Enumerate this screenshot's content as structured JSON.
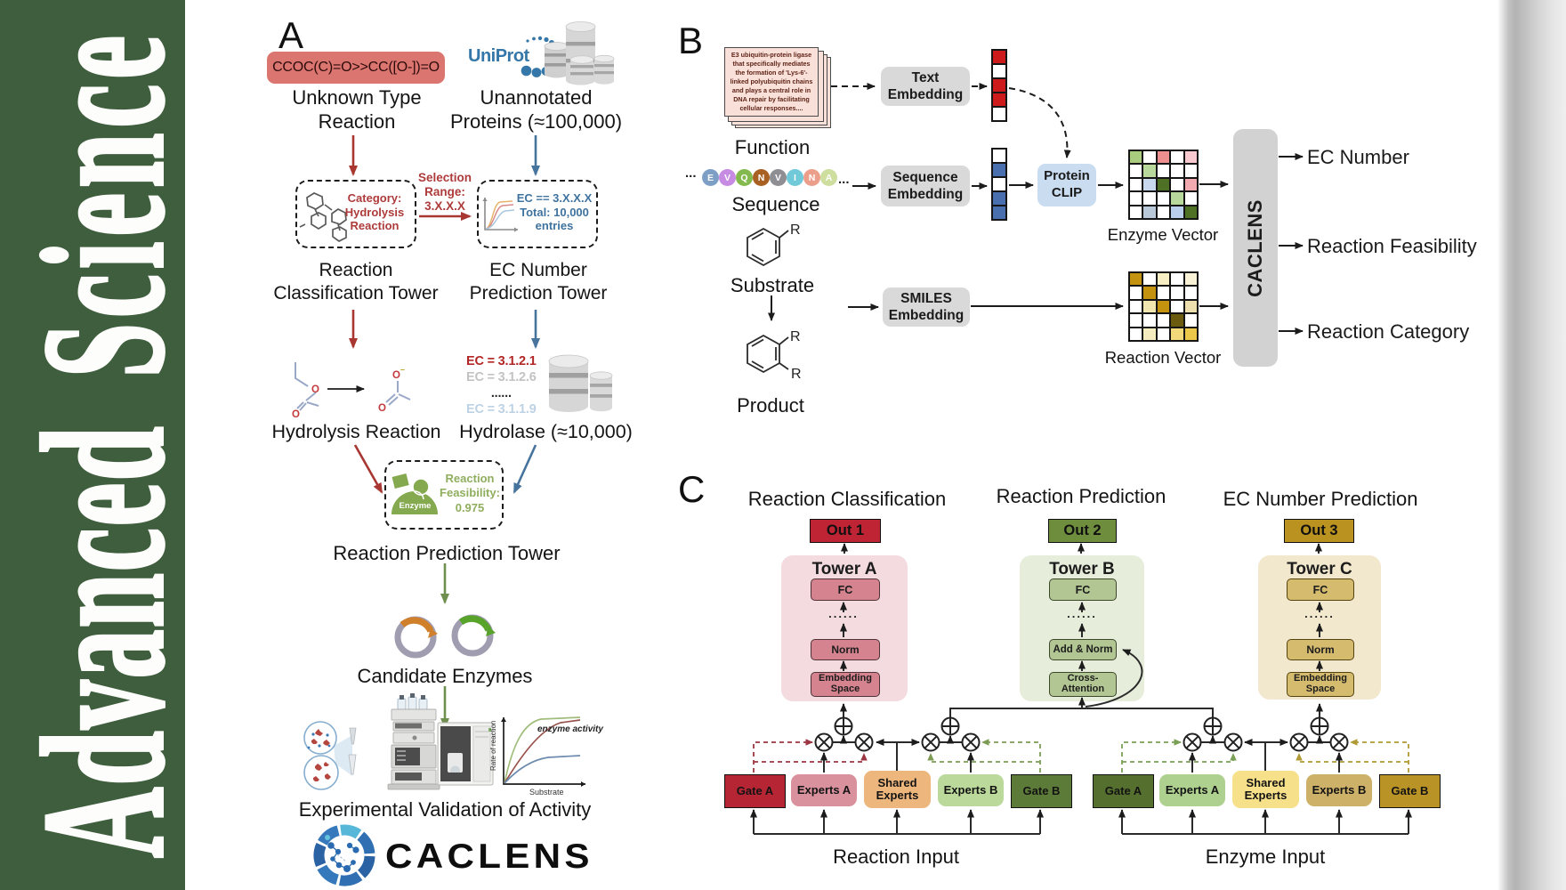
{
  "sidebar": {
    "word_bottom": "Advanced",
    "word_top": "Science",
    "bg_color": "#3f5e3d",
    "text_color": "#ffffff"
  },
  "panel_a": {
    "letter": "A",
    "smiles_reaction": "CCOC(C)=O>>CC([O-])=O",
    "smiles_box_color": "#da7570",
    "unknown_type": "Unknown Type\nReaction",
    "uniprot_logo": "UniProt",
    "unannotated": "Unannotated\nProteins (≈100,000)",
    "category_box": "Category:\nHydrolysis\nReaction",
    "selection_range": "Selection\nRange:\n3.X.X.X",
    "ec_box": "EC == 3.X.X.X\nTotal: 10,000\nentries",
    "classification_tower": "Reaction\nClassification Tower",
    "ec_prediction_tower": "EC Number\nPrediction Tower",
    "hydrolysis_reaction": "Hydrolysis Reaction",
    "hydrolase": "Hydrolase (≈10,000)",
    "ec_list": [
      {
        "text": "EC = 3.1.2.1",
        "color": "#b22626",
        "weight": "700"
      },
      {
        "text": "EC = 3.1.2.6",
        "color": "#c3c3c3",
        "weight": "700"
      },
      {
        "text": "......",
        "color": "#2b2b2b",
        "weight": "700",
        "align": "center"
      },
      {
        "text": "EC = 3.1.1.9",
        "color": "#bdd2e4",
        "weight": "700"
      }
    ],
    "enzyme_icon_label": "Enzyme",
    "feasibility": "Reaction\nFeasibility:\n0.975",
    "feasibility_color": "#8fae5e",
    "reaction_prediction_tower": "Reaction Prediction Tower",
    "candidate_enzymes": "Candidate Enzymes",
    "experimental_validation": "Experimental Validation of Activity",
    "kinetics_plot": {
      "annotation": "enzyme activity",
      "ylabel": "Rate of reaction",
      "xlabel": "Substrate"
    },
    "caclens_wordmark": "CACLENS",
    "arrow_red": "#a83732",
    "arrow_blue": "#47749c",
    "arrow_green": "#6e8f4e"
  },
  "panel_b": {
    "letter": "B",
    "function_card_text": "E3 ubiquitin-protein ligase that specifically mediates the formation of 'Lys-6'-linked polyubiquitin chains and plays a central role in DNA repair by facilitating cellular responses....",
    "function_label": "Function",
    "ellipsis_left": "...",
    "ellipsis_right": "...",
    "residues": [
      {
        "letter": "E",
        "color": "#7e9fc5"
      },
      {
        "letter": "V",
        "color": "#c78be4"
      },
      {
        "letter": "Q",
        "color": "#84b94e"
      },
      {
        "letter": "N",
        "color": "#a96023"
      },
      {
        "letter": "V",
        "color": "#8f8f93"
      },
      {
        "letter": "I",
        "color": "#6fc9d9"
      },
      {
        "letter": "N",
        "color": "#eb9f8a"
      },
      {
        "letter": "A",
        "color": "#cede9f"
      }
    ],
    "sequence_label": "Sequence",
    "substrate_label": "Substrate",
    "product_label": "Product",
    "r_group": "R",
    "text_embedding": "Text\nEmbedding",
    "sequence_embedding": "Sequence\nEmbedding",
    "smiles_embedding": "SMILES\nEmbedding",
    "protein_clip": "Protein\nCLIP",
    "protein_clip_color": "#c9dcf0",
    "text_vector_cells": [
      "#cd1a1a",
      "#ffffff",
      "#cd1a1a",
      "#cd1a1a",
      "#ffffff"
    ],
    "sequence_vector_cells": [
      "#ffffff",
      "#4a6fae",
      "#ffffff",
      "#4a6fae",
      "#4a6fae"
    ],
    "enzyme_vector": {
      "label": "Enzyme Vector",
      "cells": [
        [
          "#a9cc7e",
          "#ffffff",
          "#ee8f8f",
          "#ffffff",
          "#f8c9cf"
        ],
        [
          "#ffffff",
          "#b9d89b",
          "#ffffff",
          "#ffffff",
          "#ffffff"
        ],
        [
          "#ffffff",
          "#c8d9ee",
          "#4f7126",
          "#ffffff",
          "#f2a9b0"
        ],
        [
          "#ffffff",
          "#ffffff",
          "#ffffff",
          "#b9d89b",
          "#ffffff"
        ],
        [
          "#ffffff",
          "#b9c9d9",
          "#ffffff",
          "#b9cfec",
          "#4f7126"
        ]
      ]
    },
    "reaction_vector": {
      "label": "Reaction Vector",
      "cells": [
        [
          "#c3920e",
          "#ffffff",
          "#f7eec3",
          "#ffffff",
          "#f9f2d6"
        ],
        [
          "#ffffff",
          "#c3920e",
          "#ffffff",
          "#ffffff",
          "#ffffff"
        ],
        [
          "#ffffff",
          "#f2e6b0",
          "#c3920e",
          "#ffffff",
          "#eddfad"
        ],
        [
          "#ffffff",
          "#ffffff",
          "#ffffff",
          "#6b5b0e",
          "#ffffff"
        ],
        [
          "#ffffff",
          "#f5ecc0",
          "#ffffff",
          "#f2da7a",
          "#ecc84a"
        ]
      ]
    },
    "caclens_box": "CACLENS",
    "outputs": [
      "EC Number",
      "Reaction Feasibility",
      "Reaction Category"
    ]
  },
  "panel_c": {
    "letter": "C",
    "headers": [
      "Reaction Classification",
      "Reaction Prediction",
      "EC Number Prediction"
    ],
    "tower_a": {
      "out": "Out 1",
      "out_color": "#bf2434",
      "title": "Tower A",
      "bg": "#f3dbdf",
      "box": "#d4838f",
      "fc": "FC",
      "dots": "......",
      "norm": "Norm",
      "embedding": "Embedding\nSpace"
    },
    "tower_b": {
      "out": "Out 2",
      "out_color": "#6e8e3e",
      "title": "Tower B",
      "bg": "#e6edda",
      "box": "#b2c693",
      "fc": "FC",
      "dots": "......",
      "add_norm": "Add & Norm",
      "cross_attention": "Cross-\nAttention"
    },
    "tower_c": {
      "out": "Out 3",
      "out_color": "#b9921f",
      "title": "Tower C",
      "bg": "#f1e8cd",
      "box": "#d5bb6e",
      "fc": "FC",
      "dots": "......",
      "norm": "Norm",
      "embedding": "Embedding\nSpace"
    },
    "reaction_moe": {
      "gate_a": "Gate A",
      "gate_a_color": "#b52534",
      "experts_a": "Experts A",
      "experts_a_color": "#d9919d",
      "shared": "Shared\nExperts",
      "shared_color": "#edb67c",
      "experts_b": "Experts B",
      "experts_b_color": "#bcd99c",
      "gate_b": "Gate B",
      "gate_b_color": "#5c7a38",
      "input": "Reaction Input"
    },
    "enzyme_moe": {
      "gate_a": "Gate A",
      "gate_a_color": "#556f2e",
      "experts_a": "Experts A",
      "experts_a_color": "#aed190",
      "shared": "Shared\nExperts",
      "shared_color": "#f7e08a",
      "experts_b": "Experts B",
      "experts_b_color": "#cdb168",
      "gate_b": "Gate B",
      "gate_b_color": "#ba9327",
      "input": "Enzyme Input"
    }
  }
}
